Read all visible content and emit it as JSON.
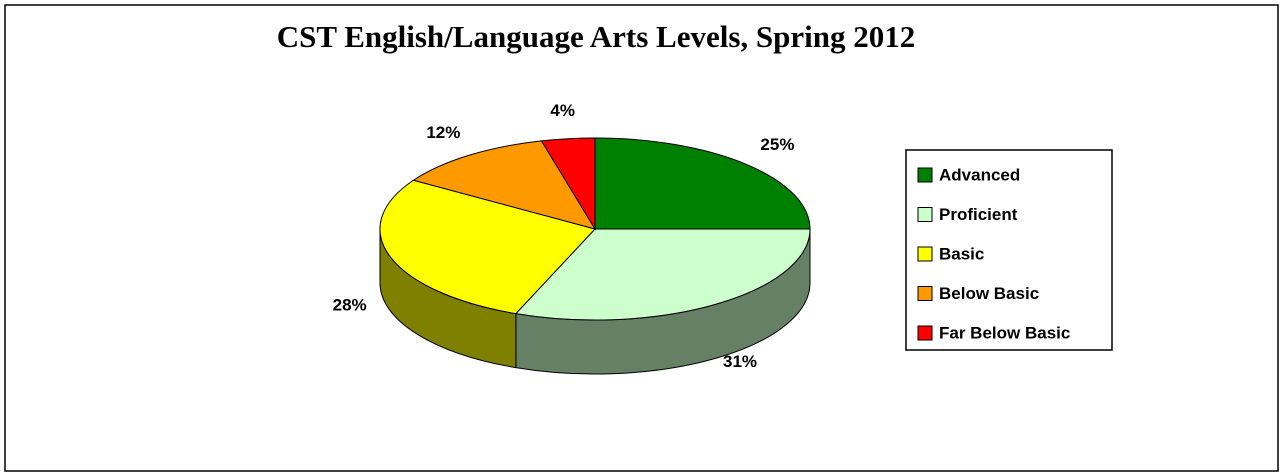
{
  "chart_data": {
    "type": "pie3d",
    "title": "CST English/Language Arts Levels, Spring 2012",
    "categories": [
      "Advanced",
      "Proficient",
      "Basic",
      "Below Basic",
      "Far Below Basic"
    ],
    "values": [
      25,
      31,
      28,
      12,
      4
    ],
    "value_labels": [
      "25%",
      "31%",
      "28%",
      "12%",
      "4%"
    ],
    "colors": [
      "#008000",
      "#ccffcc",
      "#ffff00",
      "#ff9900",
      "#ff0000"
    ],
    "legend": "right"
  }
}
